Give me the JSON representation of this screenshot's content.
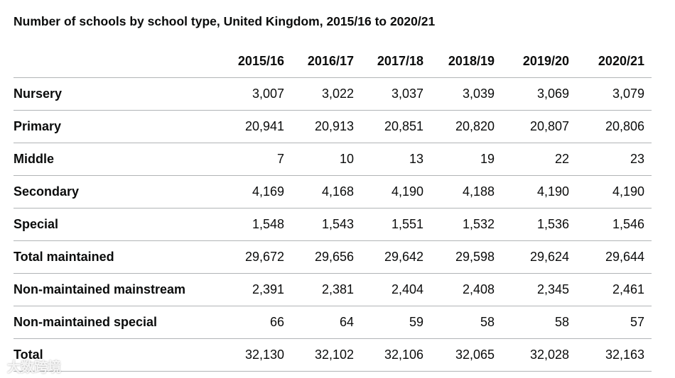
{
  "title": "Number of schools by school type, United Kingdom, 2015/16 to 2020/21",
  "table": {
    "header": [
      "2015/16",
      "2016/17",
      "2017/18",
      "2018/19",
      "2019/20",
      "2020/21"
    ],
    "rows": [
      [
        "Nursery",
        "3,007",
        "3,022",
        "3,037",
        "3,039",
        "3,069",
        "3,079"
      ],
      [
        "Primary",
        "20,941",
        "20,913",
        "20,851",
        "20,820",
        "20,807",
        "20,806"
      ],
      [
        "Middle",
        "7",
        "10",
        "13",
        "19",
        "22",
        "23"
      ],
      [
        "Secondary",
        "4,169",
        "4,168",
        "4,190",
        "4,188",
        "4,190",
        "4,190"
      ],
      [
        "Special",
        "1,548",
        "1,543",
        "1,551",
        "1,532",
        "1,536",
        "1,546"
      ],
      [
        "Total maintained",
        "29,672",
        "29,656",
        "29,642",
        "29,598",
        "29,624",
        "29,644"
      ],
      [
        "Non-maintained mainstream",
        "2,391",
        "2,381",
        "2,404",
        "2,408",
        "2,345",
        "2,461"
      ],
      [
        "Non-maintained special",
        "66",
        "64",
        "59",
        "58",
        "58",
        "57"
      ],
      [
        "Total",
        "32,130",
        "32,102",
        "32,106",
        "32,065",
        "32,028",
        "32,163"
      ]
    ]
  },
  "watermark": "大数跨境"
}
